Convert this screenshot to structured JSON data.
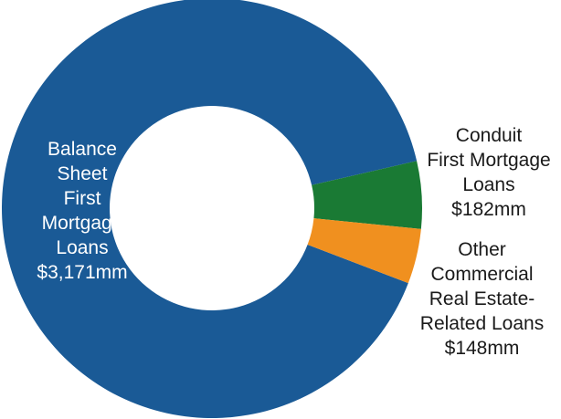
{
  "chart_data": {
    "type": "pie",
    "donut": true,
    "title": "",
    "unit": "mm",
    "slices": [
      {
        "name": "Balance Sheet First Mortgage Loans",
        "value": 3171,
        "label_lines": [
          "Balance",
          "Sheet",
          "First",
          "Mortgage",
          "Loans",
          "$3,171mm"
        ],
        "color": "#1a5a96"
      },
      {
        "name": "Conduit First Mortgage Loans",
        "value": 182,
        "label_lines": [
          "Conduit",
          "First Mortgage",
          "Loans",
          "$182mm"
        ],
        "color": "#1a7a34"
      },
      {
        "name": "Other Commercial Real Estate-Related Loans",
        "value": 148,
        "label_lines": [
          "Other",
          "Commercial",
          "Real Estate-",
          "Related Loans",
          "$148mm"
        ],
        "color": "#f0901f"
      }
    ]
  }
}
